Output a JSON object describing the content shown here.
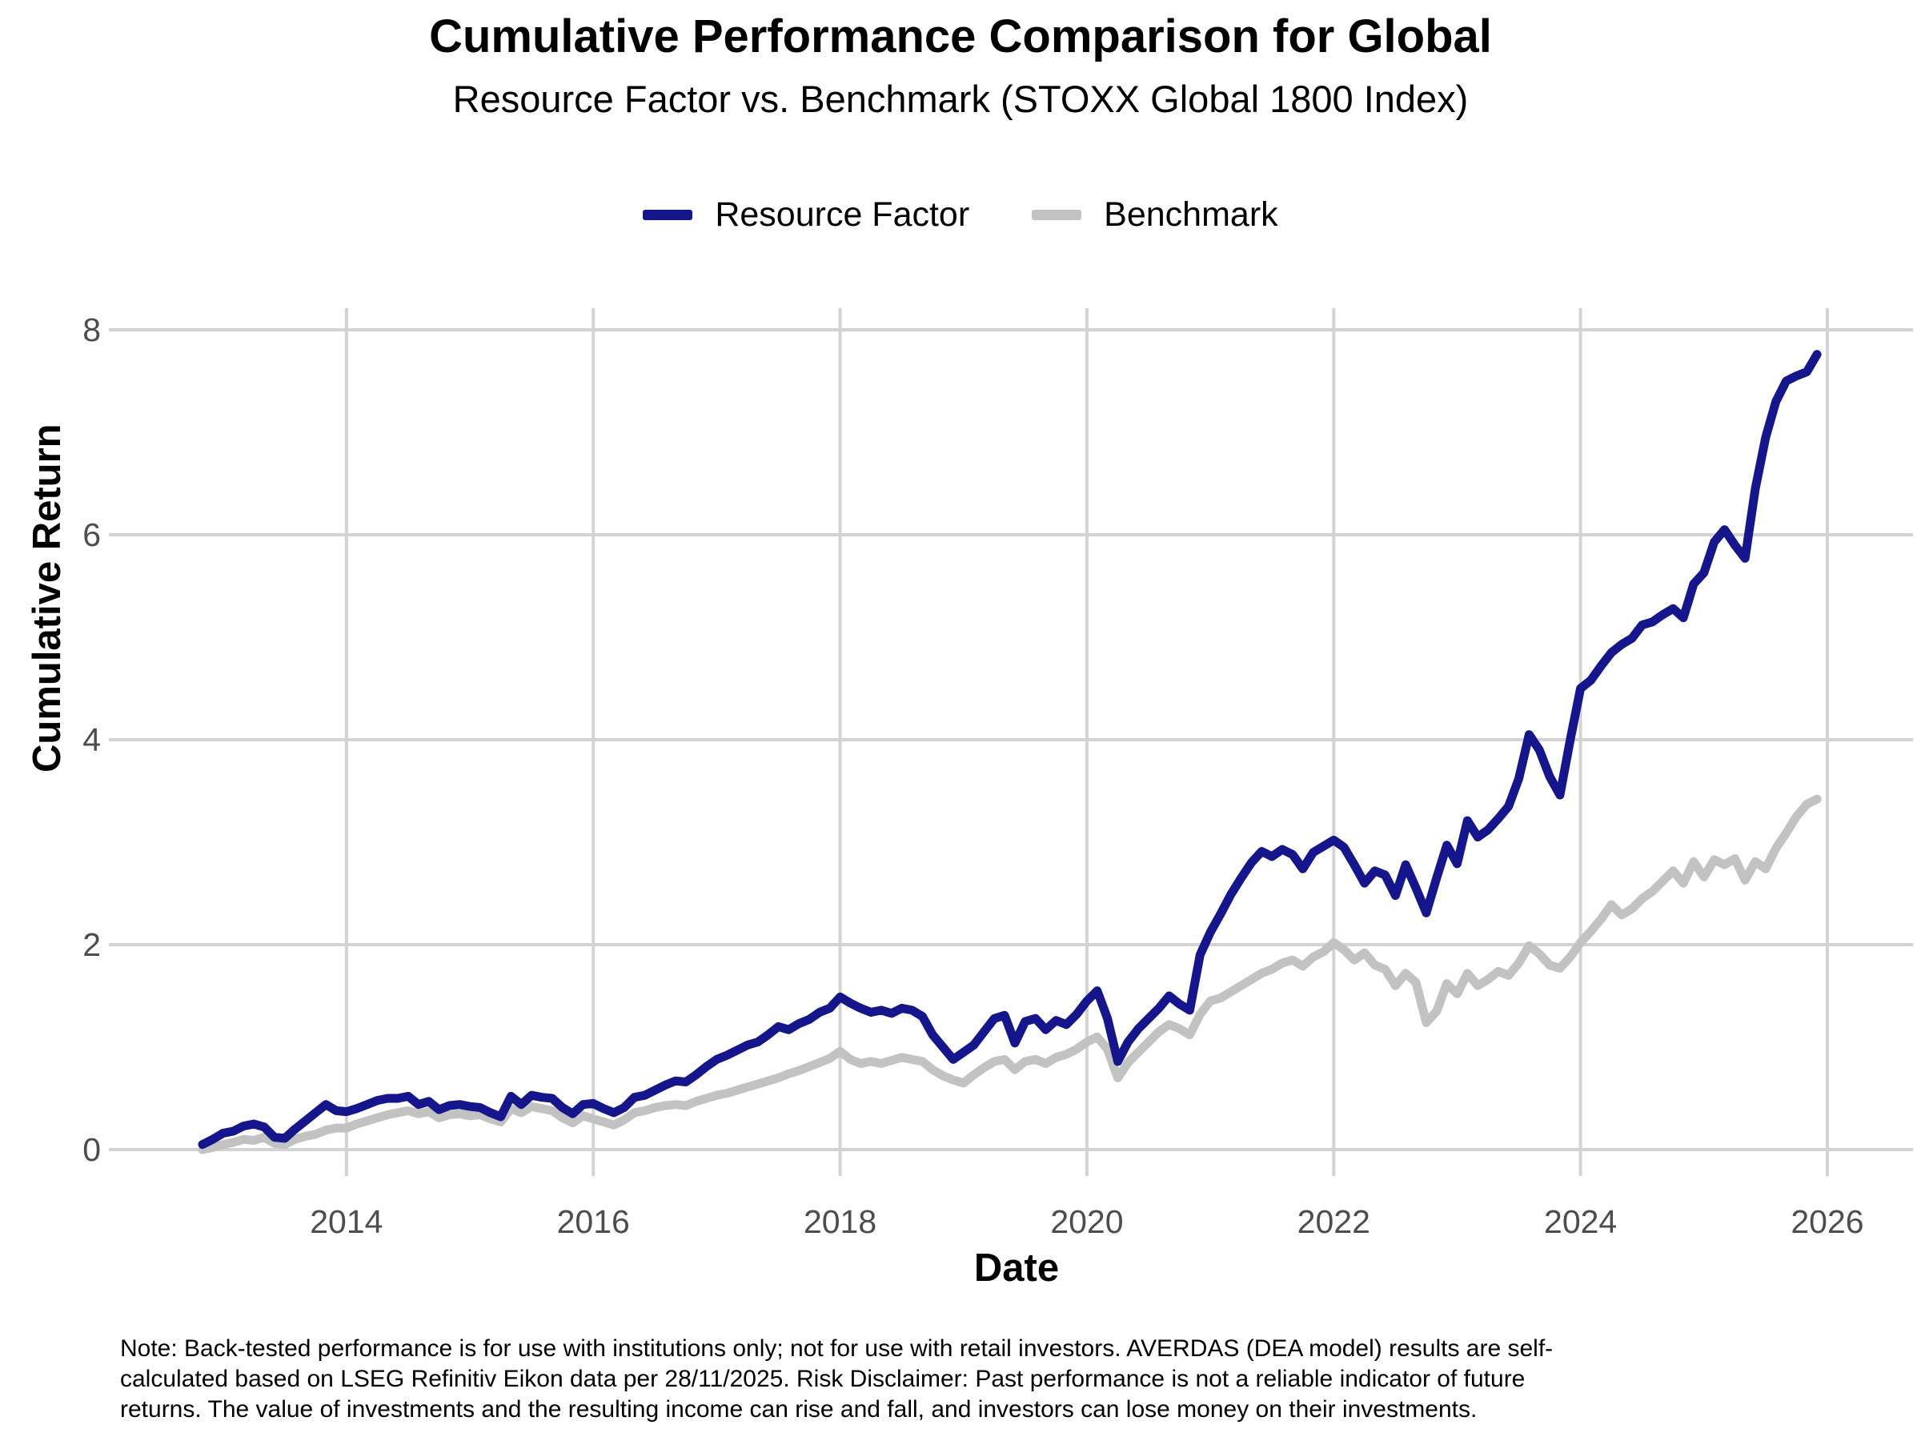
{
  "header": {
    "title": "Cumulative Performance Comparison for Global",
    "subtitle": "Resource Factor vs. Benchmark (STOXX Global 1800 Index)"
  },
  "note": "Note: Back-tested performance is for use with institutions only; not for use with retail investors. AVERDAS (DEA model) results are self-calculated based on LSEG Refinitiv Eikon data per 28/11/2025. Risk Disclaimer: Past performance is not a reliable indicator of future returns. The value of investments and the resulting income can rise and fall, and investors can lose money on their investments.",
  "colors": {
    "resource_factor": "#15158c",
    "benchmark": "#c2c2c2",
    "gridline": "#d3d3d3",
    "tick_text": "#4d4d4d",
    "background": "#ffffff"
  },
  "chart_data": {
    "type": "line",
    "title": "Cumulative Performance Comparison for Global",
    "subtitle": "Resource Factor vs. Benchmark (STOXX Global 1800 Index)",
    "xlabel": "Date",
    "ylabel": "Cumulative Return",
    "ylim": [
      0,
      8
    ],
    "yticks": [
      0,
      2,
      4,
      6,
      8
    ],
    "xticks": [
      2014,
      2016,
      2018,
      2020,
      2022,
      2024,
      2026
    ],
    "grid": true,
    "legend_position": "top",
    "x_frequency": "monthly",
    "x": [
      "2012-10",
      "2012-11",
      "2012-12",
      "2013-01",
      "2013-02",
      "2013-03",
      "2013-04",
      "2013-05",
      "2013-06",
      "2013-07",
      "2013-08",
      "2013-09",
      "2013-10",
      "2013-11",
      "2013-12",
      "2014-01",
      "2014-02",
      "2014-03",
      "2014-04",
      "2014-05",
      "2014-06",
      "2014-07",
      "2014-08",
      "2014-09",
      "2014-10",
      "2014-11",
      "2014-12",
      "2015-01",
      "2015-02",
      "2015-03",
      "2015-04",
      "2015-05",
      "2015-06",
      "2015-07",
      "2015-08",
      "2015-09",
      "2015-10",
      "2015-11",
      "2015-12",
      "2016-01",
      "2016-02",
      "2016-03",
      "2016-04",
      "2016-05",
      "2016-06",
      "2016-07",
      "2016-08",
      "2016-09",
      "2016-10",
      "2016-11",
      "2016-12",
      "2017-01",
      "2017-02",
      "2017-03",
      "2017-04",
      "2017-05",
      "2017-06",
      "2017-07",
      "2017-08",
      "2017-09",
      "2017-10",
      "2017-11",
      "2017-12",
      "2018-01",
      "2018-02",
      "2018-03",
      "2018-04",
      "2018-05",
      "2018-06",
      "2018-07",
      "2018-08",
      "2018-09",
      "2018-10",
      "2018-11",
      "2018-12",
      "2019-01",
      "2019-02",
      "2019-03",
      "2019-04",
      "2019-05",
      "2019-06",
      "2019-07",
      "2019-08",
      "2019-09",
      "2019-10",
      "2019-11",
      "2019-12",
      "2020-01",
      "2020-02",
      "2020-03",
      "2020-04",
      "2020-05",
      "2020-06",
      "2020-07",
      "2020-08",
      "2020-09",
      "2020-10",
      "2020-11",
      "2020-12",
      "2021-01",
      "2021-02",
      "2021-03",
      "2021-04",
      "2021-05",
      "2021-06",
      "2021-07",
      "2021-08",
      "2021-09",
      "2021-10",
      "2021-11",
      "2021-12",
      "2022-01",
      "2022-02",
      "2022-03",
      "2022-04",
      "2022-05",
      "2022-06",
      "2022-07",
      "2022-08",
      "2022-09",
      "2022-10",
      "2022-11",
      "2022-12",
      "2023-01",
      "2023-02",
      "2023-03",
      "2023-04",
      "2023-05",
      "2023-06",
      "2023-07",
      "2023-08",
      "2023-09",
      "2023-10",
      "2023-11",
      "2023-12",
      "2024-01",
      "2024-02",
      "2024-03",
      "2024-04",
      "2024-05",
      "2024-06",
      "2024-07",
      "2024-08",
      "2024-09",
      "2024-10",
      "2024-11",
      "2024-12",
      "2025-01",
      "2025-02",
      "2025-03",
      "2025-04",
      "2025-05",
      "2025-06",
      "2025-07",
      "2025-08",
      "2025-09",
      "2025-10",
      "2025-11"
    ],
    "series": [
      {
        "name": "Resource Factor",
        "key": "resource-factor",
        "color": "#15158c",
        "values": [
          0.05,
          0.1,
          0.16,
          0.18,
          0.23,
          0.25,
          0.22,
          0.12,
          0.11,
          0.2,
          0.28,
          0.36,
          0.44,
          0.38,
          0.37,
          0.4,
          0.44,
          0.48,
          0.5,
          0.5,
          0.52,
          0.44,
          0.47,
          0.39,
          0.43,
          0.44,
          0.42,
          0.41,
          0.36,
          0.32,
          0.52,
          0.44,
          0.53,
          0.51,
          0.5,
          0.41,
          0.35,
          0.44,
          0.45,
          0.4,
          0.36,
          0.41,
          0.51,
          0.53,
          0.58,
          0.63,
          0.67,
          0.66,
          0.73,
          0.81,
          0.88,
          0.92,
          0.97,
          1.02,
          1.05,
          1.12,
          1.2,
          1.17,
          1.23,
          1.27,
          1.34,
          1.38,
          1.49,
          1.43,
          1.38,
          1.34,
          1.36,
          1.33,
          1.38,
          1.36,
          1.3,
          1.12,
          1.0,
          0.88,
          0.95,
          1.02,
          1.15,
          1.28,
          1.31,
          1.04,
          1.25,
          1.28,
          1.17,
          1.26,
          1.22,
          1.32,
          1.45,
          1.55,
          1.28,
          0.86,
          1.05,
          1.18,
          1.28,
          1.38,
          1.5,
          1.42,
          1.36,
          1.9,
          2.12,
          2.3,
          2.49,
          2.65,
          2.8,
          2.91,
          2.86,
          2.93,
          2.88,
          2.74,
          2.9,
          2.96,
          3.02,
          2.95,
          2.78,
          2.6,
          2.72,
          2.68,
          2.48,
          2.78,
          2.55,
          2.31,
          2.65,
          2.97,
          2.79,
          3.21,
          3.05,
          3.12,
          3.23,
          3.35,
          3.62,
          4.05,
          3.9,
          3.64,
          3.46,
          4.0,
          4.5,
          4.58,
          4.72,
          4.85,
          4.93,
          4.99,
          5.12,
          5.15,
          5.22,
          5.28,
          5.19,
          5.52,
          5.63,
          5.93,
          6.05,
          5.9,
          5.77,
          6.45,
          6.95,
          7.3,
          7.5,
          7.55,
          7.59,
          7.76
        ]
      },
      {
        "name": "Benchmark",
        "key": "benchmark",
        "color": "#c2c2c2",
        "values": [
          0.0,
          0.02,
          0.05,
          0.07,
          0.1,
          0.09,
          0.12,
          0.06,
          0.05,
          0.1,
          0.13,
          0.15,
          0.19,
          0.21,
          0.21,
          0.25,
          0.28,
          0.31,
          0.34,
          0.36,
          0.38,
          0.35,
          0.37,
          0.31,
          0.34,
          0.35,
          0.33,
          0.34,
          0.3,
          0.27,
          0.4,
          0.36,
          0.42,
          0.4,
          0.38,
          0.31,
          0.26,
          0.33,
          0.3,
          0.27,
          0.24,
          0.29,
          0.36,
          0.38,
          0.41,
          0.43,
          0.44,
          0.43,
          0.47,
          0.5,
          0.53,
          0.55,
          0.58,
          0.61,
          0.64,
          0.67,
          0.7,
          0.74,
          0.77,
          0.81,
          0.85,
          0.89,
          0.96,
          0.88,
          0.84,
          0.86,
          0.84,
          0.87,
          0.9,
          0.88,
          0.86,
          0.78,
          0.72,
          0.68,
          0.65,
          0.73,
          0.8,
          0.86,
          0.88,
          0.78,
          0.86,
          0.88,
          0.84,
          0.9,
          0.93,
          0.98,
          1.05,
          1.1,
          0.98,
          0.7,
          0.85,
          0.95,
          1.05,
          1.15,
          1.22,
          1.18,
          1.12,
          1.32,
          1.45,
          1.48,
          1.54,
          1.6,
          1.66,
          1.72,
          1.76,
          1.82,
          1.85,
          1.79,
          1.88,
          1.93,
          2.02,
          1.95,
          1.85,
          1.92,
          1.8,
          1.76,
          1.6,
          1.72,
          1.63,
          1.24,
          1.35,
          1.62,
          1.52,
          1.72,
          1.6,
          1.66,
          1.74,
          1.7,
          1.82,
          1.99,
          1.91,
          1.8,
          1.77,
          1.88,
          2.02,
          2.13,
          2.25,
          2.39,
          2.29,
          2.35,
          2.45,
          2.52,
          2.62,
          2.72,
          2.6,
          2.81,
          2.66,
          2.83,
          2.78,
          2.84,
          2.63,
          2.81,
          2.74,
          2.94,
          3.09,
          3.25,
          3.37,
          3.42
        ]
      }
    ]
  }
}
